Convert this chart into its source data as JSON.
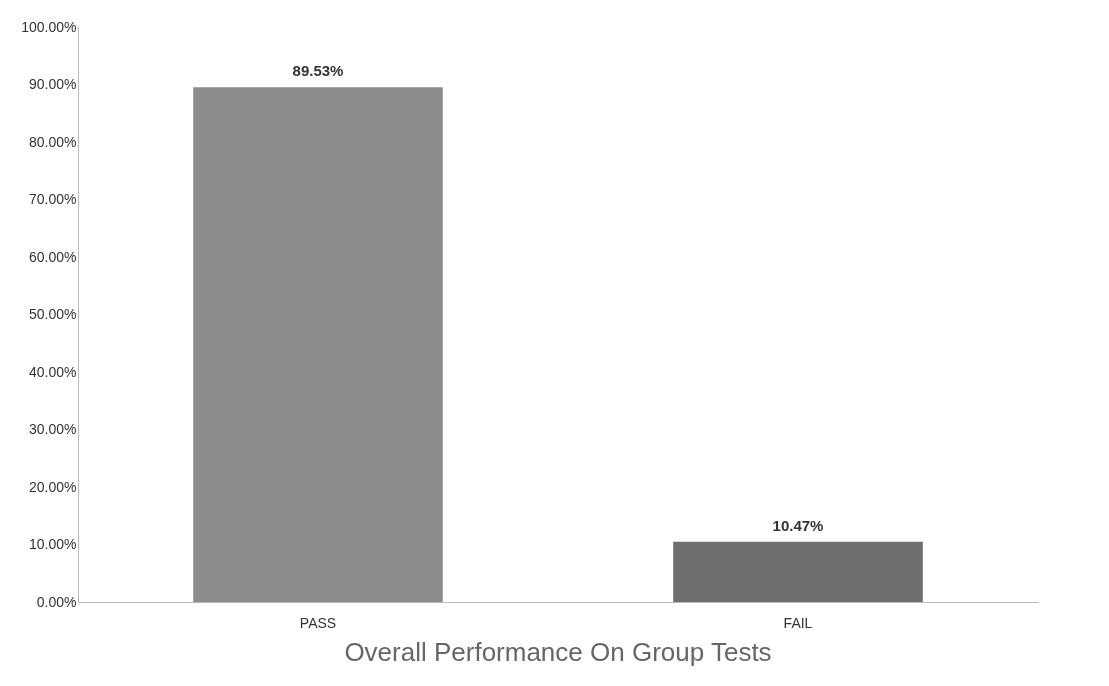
{
  "chart_data": {
    "type": "bar",
    "title": "Overall Performance On Group Tests",
    "categories": [
      "PASS",
      "FAIL"
    ],
    "values": [
      89.53,
      10.47
    ],
    "colors": [
      "#8c8c8c",
      "#6e6e6e"
    ],
    "value_labels": [
      "89.53%",
      "10.47%"
    ],
    "ylim": [
      0,
      100
    ],
    "yticks": [
      {
        "value": 0,
        "label": "0.00%"
      },
      {
        "value": 10,
        "label": "10.00%"
      },
      {
        "value": 20,
        "label": "20.00%"
      },
      {
        "value": 30,
        "label": "30.00%"
      },
      {
        "value": 40,
        "label": "40.00%"
      },
      {
        "value": 50,
        "label": "50.00%"
      },
      {
        "value": 60,
        "label": "60.00%"
      },
      {
        "value": 70,
        "label": "70.00%"
      },
      {
        "value": 80,
        "label": "80.00%"
      },
      {
        "value": 90,
        "label": "90.00%"
      },
      {
        "value": 100,
        "label": "100.00%"
      }
    ],
    "grid": false
  }
}
